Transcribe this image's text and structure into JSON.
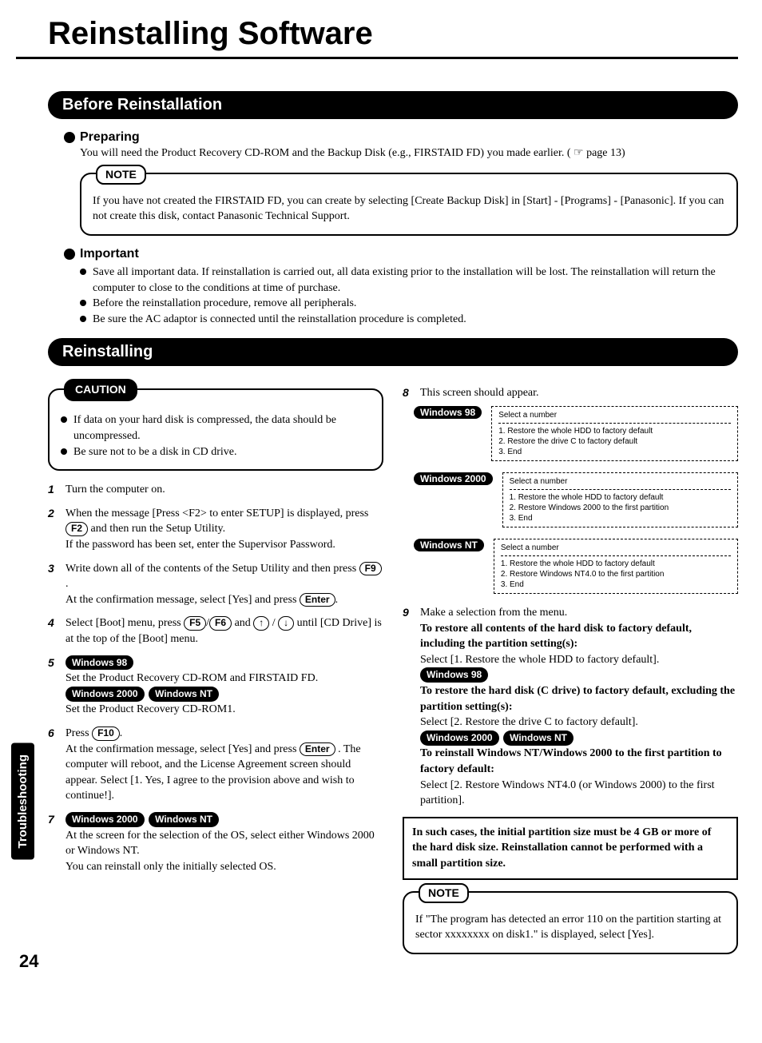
{
  "page": {
    "title": "Reinstalling Software",
    "side_tab": "Troubleshooting",
    "number": "24"
  },
  "sections": {
    "before": "Before Reinstallation",
    "reinstalling": "Reinstalling"
  },
  "preparing": {
    "heading": "Preparing",
    "text": "You will need the Product Recovery CD-ROM and the Backup Disk (e.g., FIRSTAID FD) you made earlier. ( ☞ page 13)"
  },
  "note1": {
    "tab": "NOTE",
    "text": "If you have not created the FIRSTAID FD, you can create by selecting [Create Backup Disk] in [Start] - [Programs] - [Panasonic]. If you can not create this disk, contact Panasonic Technical Support."
  },
  "important": {
    "heading": "Important",
    "items": [
      "Save all important data. If reinstallation is carried out, all data existing prior to the installation will be lost. The reinstallation will return the computer to close to the conditions at time of purchase.",
      "Before the reinstallation procedure, remove all peripherals.",
      "Be sure the AC adaptor is connected until the reinstallation procedure is completed."
    ]
  },
  "caution": {
    "tab": "CAUTION",
    "items": [
      "If data on your hard disk is compressed, the data should be uncompressed.",
      "Be sure not to be a disk in CD drive."
    ]
  },
  "steps": {
    "s1": "Turn the computer on.",
    "s2a": "When the message [Press <F2> to enter SETUP] is displayed, press ",
    "s2b": " and then run the Setup Utility.",
    "s2c": "If the password has been set, enter the Supervisor Password.",
    "s3a": "Write down all of the contents of the Setup Utility and then press ",
    "s3b": "At the confirmation message, select [Yes] and press ",
    "s4a": "Select [Boot] menu, press ",
    "s4b": " and ",
    "s4c": " until [CD Drive] is at the top of the [Boot] menu.",
    "s5a": "Set the Product Recovery CD-ROM and FIRSTAID FD.",
    "s5b": "Set the Product Recovery CD-ROM1.",
    "s6a": "Press ",
    "s6b": "At the confirmation message, select [Yes] and press ",
    "s6c": " . The computer will reboot, and the License Agreement screen should appear. Select [1. Yes, I agree to the provision above and wish to continue!].",
    "s7a": "At the screen for the selection of the OS, select either Windows 2000 or Windows NT.",
    "s7b": "You can reinstall only the initially selected OS.",
    "s8": "This screen should appear.",
    "s9a": "Make a selection from the menu.",
    "s9b": "To restore all contents of the hard disk to factory default, including the partition setting(s):",
    "s9c": "Select [1. Restore the whole HDD to factory default].",
    "s9d": "To restore the hard disk (C drive) to factory default, excluding the partition setting(s):",
    "s9e": "Select [2. Restore the drive C to factory default].",
    "s9f": "To reinstall Windows NT/Windows 2000 to the first partition to factory default:",
    "s9g": "Select [2. Restore Windows NT4.0 (or Windows 2000) to the first partition]."
  },
  "keys": {
    "f2": "F2",
    "f5": "F5",
    "f6": "F6",
    "f9": "F9",
    "f10": "F10",
    "enter": "Enter",
    "up": "↑",
    "down": "↓"
  },
  "os": {
    "w98": "Windows 98",
    "w2000": "Windows 2000",
    "wnt": "Windows NT"
  },
  "screens": {
    "header": "Select a number",
    "w98": [
      "1. Restore the whole HDD to factory default",
      "2. Restore the drive C to factory default",
      "3. End"
    ],
    "w2000": [
      "1. Restore the whole HDD to factory default",
      "2. Restore Windows 2000 to the first partition",
      "3. End"
    ],
    "wnt": [
      "1. Restore the whole HDD to factory default",
      "2. Restore Windows NT4.0 to the first partition",
      "3. End"
    ]
  },
  "partition_box": "In such cases, the initial partition size must be 4 GB or more of the hard disk size. Reinstallation cannot be performed with a small partition size.",
  "note2": {
    "tab": "NOTE",
    "text": "If \"The program has detected an error 110 on the partition starting at sector xxxxxxxx on disk1.\" is displayed, select [Yes]."
  }
}
